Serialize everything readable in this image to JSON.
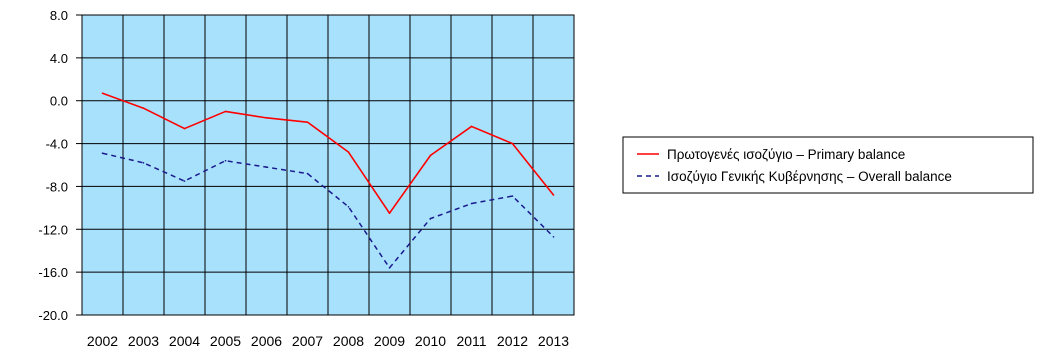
{
  "chart_data": {
    "type": "line",
    "x": [
      "2002",
      "2003",
      "2004",
      "2005",
      "2006",
      "2007",
      "2008",
      "2009",
      "2010",
      "2011",
      "2012",
      "2013"
    ],
    "series": [
      {
        "name": "Πρωτογενές ισοζύγιο – Primary balance",
        "values": [
          0.7,
          -0.7,
          -2.6,
          -1.0,
          -1.6,
          -2.0,
          -4.8,
          -10.5,
          -5.1,
          -2.4,
          -4.0,
          -8.8
        ],
        "color": "#ff0000",
        "style": "solid"
      },
      {
        "name": "Ισοζύγιο Γενικής Κυβέρνησης – Overall balance",
        "values": [
          -4.9,
          -5.8,
          -7.5,
          -5.6,
          -6.2,
          -6.8,
          -9.9,
          -15.6,
          -11.0,
          -9.6,
          -8.9,
          -12.7
        ],
        "color": "#1a1a8c",
        "style": "dashed"
      }
    ],
    "ylim": [
      -20.0,
      8.0
    ],
    "yticks": [
      "8.0",
      "4.0",
      "0.0",
      "-4.0",
      "-8.0",
      "-12.0",
      "-16.0",
      "-20.0"
    ],
    "grid": true,
    "plot_background": "#a8e1fc",
    "legend": {
      "position": "right",
      "entries": [
        "Πρωτογενές ισοζύγιο – Primary balance",
        "Ισοζύγιο Γενικής Κυβέρνησης – Overall balance"
      ]
    },
    "title": "",
    "xlabel": "",
    "ylabel": ""
  }
}
